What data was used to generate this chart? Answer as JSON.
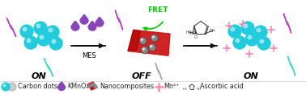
{
  "bg_color": "#ffffff",
  "cyan_dot_color": "#22ccdd",
  "purple_lightning_color": "#bb44cc",
  "cyan_lightning_color": "#44ddcc",
  "gray_lightning_color": "#aaaaaa",
  "purple_drop_color": "#8844bb",
  "red_nano_color": "#cc1111",
  "red_nano_color2": "#aa0000",
  "gray_sphere_color": "#888888",
  "gray_sphere_edge": "#444444",
  "fret_color": "#00cc00",
  "pink_plus_color": "#ff88bb",
  "arrow_color": "#111111",
  "on_label": "ON",
  "off_label": "OFF",
  "mes_label": "MES",
  "fret_label": "FRET",
  "legend_carbon": "Carbon dots",
  "legend_kmno4": "KMnO₄",
  "legend_nano": "Nanocomposites",
  "legend_mn": "Mn²⁺",
  "legend_asc": "Ascorbic acid",
  "body_fontsize": 7,
  "label_fontsize": 8,
  "legend_fontsize": 5.8
}
